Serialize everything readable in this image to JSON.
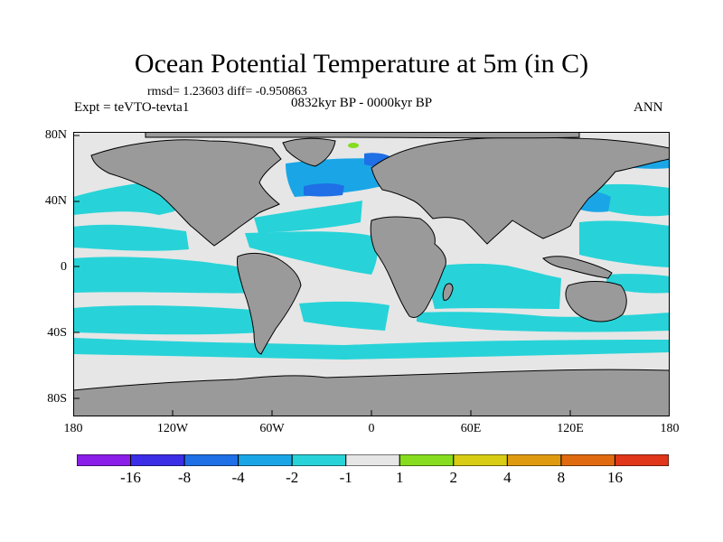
{
  "title": "Ocean Potential Temperature at 5m (in C)",
  "stats": "rmsd= 1.23603 diff= -0.950863",
  "experiment": "Expt = teVTO-tevta1",
  "period": "0832kyr BP - 0000kyr BP",
  "season": "ANN",
  "axes": {
    "lat_labels": [
      "80N",
      "40N",
      "0",
      "40S",
      "80S"
    ],
    "lon_labels": [
      "180",
      "120W",
      "60W",
      "0",
      "60E",
      "120E",
      "180"
    ]
  },
  "colorbar": {
    "labels": [
      "-16",
      "-8",
      "-4",
      "-2",
      "-1",
      "1",
      "2",
      "4",
      "8",
      "16"
    ],
    "colors": [
      "#8b1ee8",
      "#3b2ee6",
      "#1f6fe6",
      "#1aa6e6",
      "#27d3d8",
      "#e6e6e6",
      "#86dc1e",
      "#d8cc14",
      "#e09a10",
      "#e06a10",
      "#e0361a"
    ]
  },
  "map_colors": {
    "land": "#9a9a9a",
    "neutral": "#e6e6e6",
    "cyan": "#27d3d8",
    "blue": "#1aa6e6",
    "deep_blue": "#1f6fe6",
    "green": "#86dc1e"
  }
}
